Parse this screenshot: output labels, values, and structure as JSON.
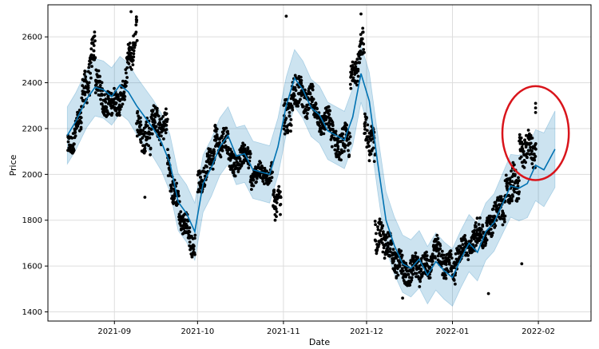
{
  "chart_data": {
    "type": "scatter",
    "title": "",
    "xlabel": "Date",
    "ylabel": "Price",
    "x_ticks": [
      "2021-09",
      "2021-10",
      "2021-11",
      "2021-12",
      "2022-01",
      "2022-02"
    ],
    "x_tick_dates": [
      "2021-09-01",
      "2021-10-01",
      "2021-11-01",
      "2021-12-01",
      "2022-01-01",
      "2022-02-01"
    ],
    "xlim": [
      "2021-08-08",
      "2022-02-20"
    ],
    "y_ticks": [
      1400,
      1600,
      1800,
      2000,
      2200,
      2400,
      2600
    ],
    "ylim": [
      1360,
      2740
    ],
    "grid": true,
    "forecast": {
      "color": "#0072B2",
      "band_color": "#0072B2",
      "points": [
        [
          "2021-08-15",
          2170
        ],
        [
          "2021-08-18",
          2230
        ],
        [
          "2021-08-22",
          2330
        ],
        [
          "2021-08-25",
          2380
        ],
        [
          "2021-08-28",
          2370
        ],
        [
          "2021-08-31",
          2340
        ],
        [
          "2021-09-03",
          2390
        ],
        [
          "2021-09-06",
          2360
        ],
        [
          "2021-09-09",
          2300
        ],
        [
          "2021-09-12",
          2250
        ],
        [
          "2021-09-15",
          2200
        ],
        [
          "2021-09-18",
          2140
        ],
        [
          "2021-09-21",
          2050
        ],
        [
          "2021-09-24",
          1880
        ],
        [
          "2021-09-27",
          1830
        ],
        [
          "2021-09-30",
          1750
        ],
        [
          "2021-10-03",
          1960
        ],
        [
          "2021-10-06",
          2030
        ],
        [
          "2021-10-09",
          2120
        ],
        [
          "2021-10-12",
          2170
        ],
        [
          "2021-10-15",
          2080
        ],
        [
          "2021-10-18",
          2090
        ],
        [
          "2021-10-21",
          2020
        ],
        [
          "2021-10-24",
          2010
        ],
        [
          "2021-10-27",
          2000
        ],
        [
          "2021-10-30",
          2120
        ],
        [
          "2021-11-02",
          2300
        ],
        [
          "2021-11-05",
          2420
        ],
        [
          "2021-11-08",
          2370
        ],
        [
          "2021-11-11",
          2290
        ],
        [
          "2021-11-14",
          2260
        ],
        [
          "2021-11-17",
          2190
        ],
        [
          "2021-11-20",
          2170
        ],
        [
          "2021-11-23",
          2150
        ],
        [
          "2021-11-26",
          2250
        ],
        [
          "2021-11-29",
          2440
        ],
        [
          "2021-12-02",
          2320
        ],
        [
          "2021-12-05",
          2050
        ],
        [
          "2021-12-08",
          1800
        ],
        [
          "2021-12-11",
          1690
        ],
        [
          "2021-12-14",
          1610
        ],
        [
          "2021-12-17",
          1590
        ],
        [
          "2021-12-20",
          1630
        ],
        [
          "2021-12-23",
          1560
        ],
        [
          "2021-12-26",
          1620
        ],
        [
          "2021-12-29",
          1580
        ],
        [
          "2022-01-01",
          1550
        ],
        [
          "2022-01-04",
          1630
        ],
        [
          "2022-01-07",
          1700
        ],
        [
          "2022-01-10",
          1660
        ],
        [
          "2022-01-13",
          1750
        ],
        [
          "2022-01-16",
          1790
        ],
        [
          "2022-01-19",
          1870
        ],
        [
          "2022-01-22",
          1950
        ],
        [
          "2022-01-25",
          1940
        ],
        [
          "2022-01-28",
          1960
        ],
        [
          "2022-01-31",
          2040
        ],
        [
          "2022-02-03",
          2020
        ],
        [
          "2022-02-07",
          2110
        ]
      ],
      "band_half_width": 125
    },
    "observed": {
      "color": "#000000",
      "segments": [
        {
          "start": "2021-08-15",
          "end": "2021-08-20",
          "from": 2100,
          "to": 2250,
          "spread": 90
        },
        {
          "start": "2021-08-20",
          "end": "2021-08-25",
          "from": 2300,
          "to": 2560,
          "spread": 140
        },
        {
          "start": "2021-08-25",
          "end": "2021-08-31",
          "from": 2400,
          "to": 2270,
          "spread": 110
        },
        {
          "start": "2021-08-31",
          "end": "2021-09-05",
          "from": 2300,
          "to": 2350,
          "spread": 100
        },
        {
          "start": "2021-09-05",
          "end": "2021-09-09",
          "from": 2450,
          "to": 2620,
          "spread": 120
        },
        {
          "start": "2021-09-09",
          "end": "2021-09-14",
          "from": 2200,
          "to": 2150,
          "spread": 130
        },
        {
          "start": "2021-09-14",
          "end": "2021-09-20",
          "from": 2230,
          "to": 2200,
          "spread": 120
        },
        {
          "start": "2021-09-20",
          "end": "2021-09-25",
          "from": 2050,
          "to": 1800,
          "spread": 120
        },
        {
          "start": "2021-09-25",
          "end": "2021-09-30",
          "from": 1820,
          "to": 1680,
          "spread": 90
        },
        {
          "start": "2021-10-01",
          "end": "2021-10-07",
          "from": 1950,
          "to": 2100,
          "spread": 100
        },
        {
          "start": "2021-10-07",
          "end": "2021-10-12",
          "from": 2150,
          "to": 2140,
          "spread": 100
        },
        {
          "start": "2021-10-12",
          "end": "2021-10-20",
          "from": 2050,
          "to": 2080,
          "spread": 90
        },
        {
          "start": "2021-10-20",
          "end": "2021-10-28",
          "from": 1990,
          "to": 2010,
          "spread": 80
        },
        {
          "start": "2021-10-28",
          "end": "2021-10-31",
          "from": 1880,
          "to": 1880,
          "spread": 90
        },
        {
          "start": "2021-11-01",
          "end": "2021-11-06",
          "from": 2200,
          "to": 2380,
          "spread": 150
        },
        {
          "start": "2021-11-06",
          "end": "2021-11-12",
          "from": 2350,
          "to": 2300,
          "spread": 120
        },
        {
          "start": "2021-11-12",
          "end": "2021-11-18",
          "from": 2250,
          "to": 2220,
          "spread": 100
        },
        {
          "start": "2021-11-18",
          "end": "2021-11-25",
          "from": 2150,
          "to": 2130,
          "spread": 120
        },
        {
          "start": "2021-11-25",
          "end": "2021-11-30",
          "from": 2400,
          "to": 2570,
          "spread": 130
        },
        {
          "start": "2021-11-30",
          "end": "2021-12-04",
          "from": 2200,
          "to": 2100,
          "spread": 130
        },
        {
          "start": "2021-12-04",
          "end": "2021-12-08",
          "from": 1750,
          "to": 1700,
          "spread": 120
        },
        {
          "start": "2021-12-08",
          "end": "2021-12-14",
          "from": 1690,
          "to": 1580,
          "spread": 110
        },
        {
          "start": "2021-12-14",
          "end": "2021-12-20",
          "from": 1560,
          "to": 1600,
          "spread": 100
        },
        {
          "start": "2021-12-20",
          "end": "2021-12-26",
          "from": 1570,
          "to": 1650,
          "spread": 100
        },
        {
          "start": "2021-12-26",
          "end": "2022-01-02",
          "from": 1660,
          "to": 1570,
          "spread": 110
        },
        {
          "start": "2022-01-02",
          "end": "2022-01-08",
          "from": 1650,
          "to": 1700,
          "spread": 90
        },
        {
          "start": "2022-01-08",
          "end": "2022-01-14",
          "from": 1720,
          "to": 1760,
          "spread": 110
        },
        {
          "start": "2022-01-14",
          "end": "2022-01-20",
          "from": 1800,
          "to": 1880,
          "spread": 120
        },
        {
          "start": "2022-01-20",
          "end": "2022-01-25",
          "from": 1950,
          "to": 1950,
          "spread": 150
        },
        {
          "start": "2022-01-25",
          "end": "2022-01-31",
          "from": 2120,
          "to": 2110,
          "spread": 120
        }
      ],
      "outliers": [
        [
          "2021-09-07",
          2710
        ],
        [
          "2021-11-02",
          2690
        ],
        [
          "2021-11-29",
          2700
        ],
        [
          "2022-01-31",
          2310
        ],
        [
          "2022-01-31",
          2290
        ],
        [
          "2022-01-31",
          2270
        ],
        [
          "2022-01-14",
          1480
        ],
        [
          "2021-12-14",
          1460
        ],
        [
          "2021-10-29",
          1800
        ],
        [
          "2021-09-12",
          1900
        ],
        [
          "2021-09-29",
          1640
        ],
        [
          "2022-01-26",
          1610
        ]
      ]
    },
    "annotation": {
      "shape": "ellipse",
      "color": "#d9141b",
      "center": [
        "2022-01-31",
        2180
      ],
      "radius_days": 12,
      "radius_y": 205
    }
  }
}
